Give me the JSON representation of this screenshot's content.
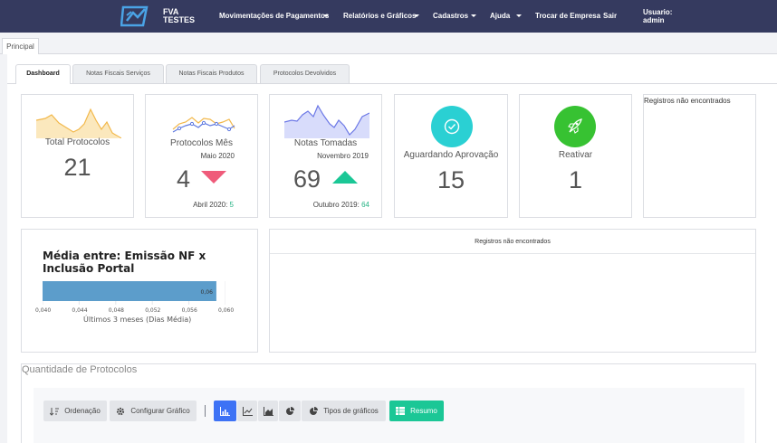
{
  "navbar": {
    "brand_line1": "FVA",
    "brand_line2": "TESTES",
    "menu": [
      {
        "label": "Movimentações de Pagamentos",
        "dropdown": true
      },
      {
        "label": "Relatórios e Gráficos",
        "dropdown": true
      },
      {
        "label": "Cadastros",
        "dropdown": true
      },
      {
        "label": "Ajuda",
        "dropdown": true
      },
      {
        "label": "Trocar de Empresa",
        "dropdown": false
      },
      {
        "label": "Sair",
        "dropdown": false
      }
    ],
    "user_label": "Usuario:",
    "user_name": "admin"
  },
  "page_tab": "Principal",
  "tabs": [
    "Dashboard",
    "Notas Fiscais Serviços",
    "Notas Fiscais Produtos",
    "Protocolos Devolvidos"
  ],
  "active_tab": "Dashboard",
  "cards": {
    "total": {
      "title": "Total Protocolos",
      "value": "21"
    },
    "mes": {
      "title": "Protocolos Mês",
      "period": "Maio 2020",
      "value": "4",
      "trend": "down",
      "prev_label": "Abril 2020:",
      "prev_value": "5"
    },
    "notas": {
      "title": "Notas Tomadas",
      "period": "Novembro 2019",
      "value": "69",
      "trend": "up",
      "prev_label": "Outubro 2019:",
      "prev_value": "64"
    },
    "aguardando": {
      "title": "Aguardando Aprovação",
      "value": "15",
      "icon": "check-circle-icon"
    },
    "reativar": {
      "title": "Reativar",
      "value": "1",
      "icon": "rocket-icon"
    },
    "empty_right": "Registros não encontrados"
  },
  "media": {
    "title_line1": "Média entre: Emissão NF x",
    "title_line2": "Inclusão Portal",
    "bar_label": "0,06",
    "axis_label": "Últimos 3 meses (Dias Média)"
  },
  "chart_data": {
    "type": "bar",
    "orientation": "horizontal",
    "categories": [
      ""
    ],
    "values": [
      0.059
    ],
    "data_labels": [
      "0,06"
    ],
    "xlim": [
      0.04,
      0.06
    ],
    "ticks": [
      "0,040",
      "0,044",
      "0,048",
      "0,052",
      "0,056",
      "0,060"
    ],
    "xlabel": "Últimos 3 meses (Dias Média)",
    "title": "Média entre: Emissão NF x Inclusão Portal",
    "grid": true
  },
  "empty_panel_wide": "Registros não encontrados",
  "quantity_section": {
    "title": "Quantidade de Protocolos",
    "buttons": {
      "ordenacao": "Ordenação",
      "configurar": "Configurar Gráfico",
      "tipos": "Tipos de gráficos",
      "resumo": "Resumo"
    }
  },
  "colors": {
    "navbar": "#353a5f",
    "accent_blue": "#3d72f5",
    "accent_green": "#1bc796",
    "down_trend": "#ef5b7a",
    "up_trend": "#1bc796",
    "aguardando_circle": "#2ad0d3",
    "reativar_circle": "#37c232",
    "bar": "#5c9dcb"
  }
}
